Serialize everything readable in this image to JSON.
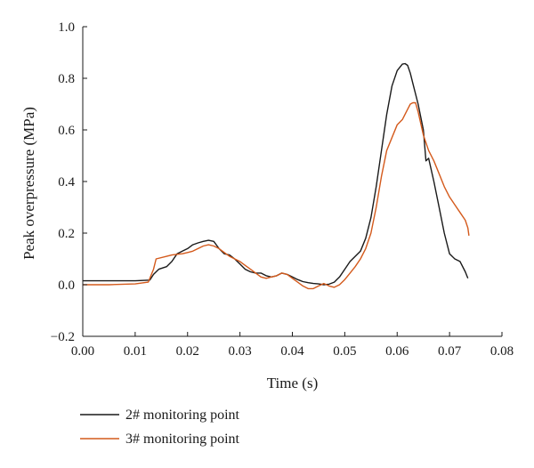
{
  "chart_data": {
    "type": "line",
    "title": "",
    "xlabel": "Time (s)",
    "ylabel": "Peak overpressure (MPa)",
    "xlim": [
      0,
      0.08
    ],
    "ylim": [
      -0.2,
      1.0
    ],
    "xticks": [
      0,
      0.01,
      0.02,
      0.03,
      0.04,
      0.05,
      0.06,
      0.07,
      0.08
    ],
    "yticks": [
      -0.2,
      0,
      0.2,
      0.4,
      0.6,
      0.8,
      1.0
    ],
    "xtick_labels": [
      "0.00",
      "0.01",
      "0.02",
      "0.03",
      "0.04",
      "0.05",
      "0.06",
      "0.07",
      "0.08"
    ],
    "ytick_labels": [
      "−0.2",
      "0.0",
      "0.2",
      "0.4",
      "0.6",
      "0.8",
      "1.0"
    ],
    "grid": false,
    "legend_position": "bottom-left",
    "series": [
      {
        "name": "2# monitoring point",
        "color": "#1a1a1a",
        "x": [
          0,
          0.005,
          0.01,
          0.0128,
          0.0135,
          0.0145,
          0.016,
          0.017,
          0.018,
          0.019,
          0.02,
          0.021,
          0.022,
          0.023,
          0.024,
          0.025,
          0.026,
          0.027,
          0.028,
          0.029,
          0.03,
          0.031,
          0.032,
          0.033,
          0.034,
          0.035,
          0.036,
          0.037,
          0.038,
          0.039,
          0.04,
          0.041,
          0.042,
          0.043,
          0.044,
          0.045,
          0.046,
          0.047,
          0.048,
          0.049,
          0.05,
          0.051,
          0.052,
          0.053,
          0.054,
          0.055,
          0.056,
          0.057,
          0.058,
          0.059,
          0.06,
          0.061,
          0.0615,
          0.062,
          0.0625,
          0.063,
          0.064,
          0.065,
          0.0655,
          0.066,
          0.067,
          0.068,
          0.069,
          0.07,
          0.071,
          0.072,
          0.073,
          0.0735
        ],
        "y": [
          0.015,
          0.015,
          0.015,
          0.018,
          0.04,
          0.06,
          0.07,
          0.09,
          0.12,
          0.13,
          0.14,
          0.155,
          0.162,
          0.168,
          0.172,
          0.168,
          0.14,
          0.12,
          0.115,
          0.1,
          0.08,
          0.06,
          0.05,
          0.045,
          0.045,
          0.035,
          0.03,
          0.035,
          0.045,
          0.04,
          0.03,
          0.02,
          0.012,
          0.008,
          0.005,
          0.003,
          0.0,
          0.002,
          0.01,
          0.03,
          0.06,
          0.09,
          0.11,
          0.13,
          0.18,
          0.26,
          0.38,
          0.52,
          0.66,
          0.77,
          0.83,
          0.855,
          0.857,
          0.85,
          0.82,
          0.78,
          0.7,
          0.6,
          0.48,
          0.49,
          0.4,
          0.3,
          0.2,
          0.12,
          0.1,
          0.09,
          0.05,
          0.025
        ]
      },
      {
        "name": "3# monitoring point",
        "color": "#d45a1c",
        "x": [
          0,
          0.005,
          0.01,
          0.0125,
          0.0135,
          0.014,
          0.016,
          0.017,
          0.018,
          0.019,
          0.02,
          0.021,
          0.022,
          0.023,
          0.024,
          0.025,
          0.026,
          0.027,
          0.028,
          0.029,
          0.03,
          0.031,
          0.032,
          0.033,
          0.034,
          0.035,
          0.036,
          0.037,
          0.038,
          0.039,
          0.04,
          0.041,
          0.042,
          0.043,
          0.044,
          0.045,
          0.046,
          0.047,
          0.048,
          0.049,
          0.05,
          0.051,
          0.052,
          0.053,
          0.054,
          0.055,
          0.056,
          0.057,
          0.058,
          0.059,
          0.06,
          0.061,
          0.062,
          0.0625,
          0.063,
          0.0635,
          0.064,
          0.065,
          0.066,
          0.067,
          0.068,
          0.069,
          0.07,
          0.071,
          0.072,
          0.073,
          0.0735,
          0.0737
        ],
        "y": [
          0.0,
          0.0,
          0.003,
          0.01,
          0.06,
          0.1,
          0.11,
          0.115,
          0.118,
          0.12,
          0.125,
          0.13,
          0.14,
          0.15,
          0.155,
          0.15,
          0.14,
          0.125,
          0.11,
          0.1,
          0.09,
          0.075,
          0.06,
          0.045,
          0.03,
          0.025,
          0.03,
          0.035,
          0.045,
          0.04,
          0.025,
          0.01,
          -0.005,
          -0.015,
          -0.015,
          -0.005,
          0.005,
          -0.005,
          -0.01,
          0.0,
          0.02,
          0.045,
          0.07,
          0.1,
          0.14,
          0.2,
          0.3,
          0.42,
          0.52,
          0.57,
          0.62,
          0.64,
          0.68,
          0.7,
          0.705,
          0.705,
          0.67,
          0.58,
          0.52,
          0.48,
          0.43,
          0.38,
          0.34,
          0.31,
          0.28,
          0.25,
          0.22,
          0.19
        ]
      }
    ]
  }
}
